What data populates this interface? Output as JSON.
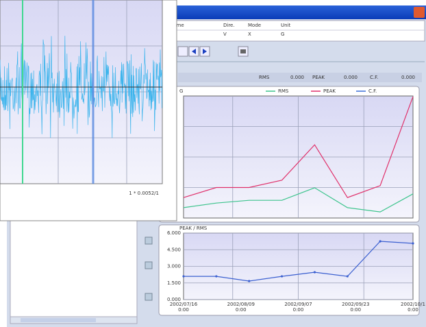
{
  "window": {
    "columns": [
      "Name",
      "Dire.",
      "Mode",
      "Unit"
    ],
    "row": [
      "V",
      "X",
      "G"
    ]
  },
  "stats": [
    {
      "label": "RMS",
      "value": "0.000"
    },
    {
      "label": "PEAK",
      "value": "0.000"
    },
    {
      "label": "C.F.",
      "value": "0.000"
    }
  ],
  "waveform": {
    "footer": "1 * 0.0052/1"
  },
  "chart_data": [
    {
      "type": "line",
      "title": "G",
      "categories": [
        null,
        null,
        null,
        null,
        null,
        null,
        null,
        null
      ],
      "series": [
        {
          "name": "RMS",
          "color": "#3cc48c",
          "values": [
            0.34,
            0.49,
            0.58,
            0.58,
            0.99,
            0.34,
            0.2,
            0.79
          ]
        },
        {
          "name": "PEAK",
          "color": "#e0306a",
          "values": [
            0.67,
            1.0,
            1.0,
            1.24,
            2.4,
            0.67,
            1.06,
            3.98
          ]
        },
        {
          "name": "C.F.",
          "color": "#3a6fd8",
          "values": [
            null,
            null,
            null,
            null,
            null,
            null,
            null,
            null
          ]
        }
      ],
      "ylim": [
        0,
        4
      ],
      "grid": true
    },
    {
      "type": "line",
      "title": "PEAK / RMS",
      "categories": [
        null,
        null,
        null,
        null,
        null,
        null,
        null,
        null
      ],
      "x_labels": [
        {
          "date": "2002/07/16",
          "time": "0:00"
        },
        {
          "date": "2002/08/09",
          "time": "0:00"
        },
        {
          "date": "2002/09/07",
          "time": "0:00"
        },
        {
          "date": "2002/09/23",
          "time": "0:00"
        },
        {
          "date": "2002/10/1",
          "time": "0:00"
        }
      ],
      "color": "#3a5fd0",
      "values": [
        2.1,
        2.1,
        1.67,
        2.1,
        2.47,
        2.1,
        5.26,
        5.07
      ],
      "ylim": [
        0,
        6
      ],
      "yticks": [
        {
          "value": 0,
          "label": "0.000"
        },
        {
          "value": 1.5,
          "label": "1.500"
        },
        {
          "value": 3,
          "label": "3.000"
        },
        {
          "value": 4.5,
          "label": "4.500"
        },
        {
          "value": 6,
          "label": "6.000"
        }
      ],
      "grid": true
    }
  ]
}
